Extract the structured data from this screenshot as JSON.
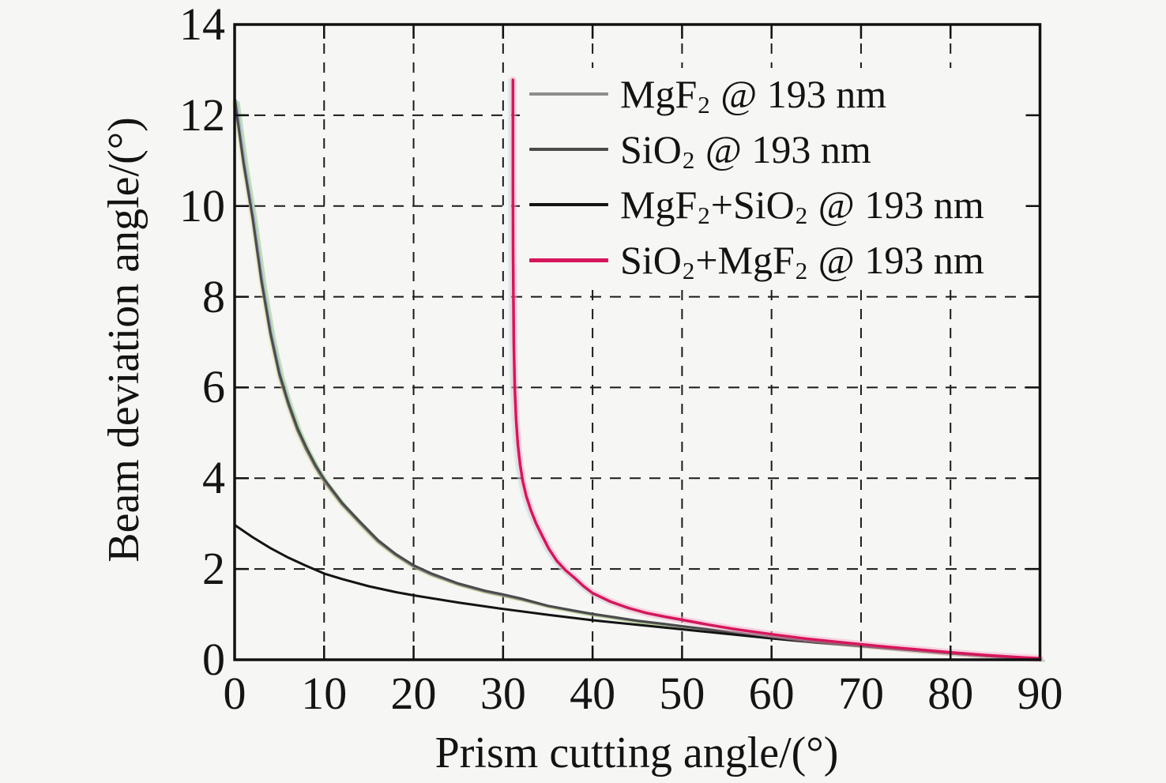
{
  "figure": {
    "background": "#f6f6f4",
    "axis_color": "#111111",
    "grid_color": "#1a1a1a",
    "text_color": "#151515"
  },
  "chart_data": {
    "type": "line",
    "title": "",
    "xlabel": "Prism cutting angle/(°)",
    "ylabel": "Beam deviation angle/(°)",
    "xlim": [
      0,
      90
    ],
    "ylim": [
      0,
      14
    ],
    "x_ticks": [
      0,
      10,
      20,
      30,
      40,
      50,
      60,
      70,
      80,
      90
    ],
    "y_ticks": [
      0,
      2,
      4,
      6,
      8,
      10,
      12,
      14
    ],
    "grid": "dashed black grid on both axes, box on, ticks inward on all four sides",
    "legend_position": "upper right inside axes, no border, opaque background",
    "series": [
      {
        "name": "MgF2 @ 193 nm",
        "label_segments": [
          [
            "MgF",
            false
          ],
          [
            "2",
            true
          ],
          [
            " @ 193 nm",
            false
          ]
        ],
        "color": "#8e8e8e",
        "line_width": 3,
        "halos": [
          {
            "color": "#5a68c0",
            "dx": 2,
            "dy": 0,
            "width": 3,
            "opacity": 0.5
          },
          {
            "color": "#7dbf70",
            "dx": 5,
            "dy": 2,
            "width": 3,
            "opacity": 0.45
          },
          {
            "color": "#d8d96a",
            "dx": -2,
            "dy": 1,
            "width": 3,
            "opacity": 0.3
          }
        ],
        "x": [
          0,
          1,
          2,
          3,
          4,
          5,
          6,
          7,
          8,
          9,
          10,
          12,
          14,
          16,
          18,
          20,
          22,
          25,
          28,
          30,
          32,
          35,
          38,
          40,
          42,
          45,
          48,
          50,
          55,
          60,
          65,
          70,
          75,
          80,
          85,
          90
        ],
        "y": [
          12.32,
          10.9,
          9.7,
          8.3,
          7.15,
          6.25,
          5.6,
          5.05,
          4.62,
          4.25,
          3.93,
          3.42,
          3.0,
          2.6,
          2.3,
          2.05,
          1.87,
          1.66,
          1.5,
          1.42,
          1.33,
          1.18,
          1.07,
          1.0,
          0.94,
          0.85,
          0.78,
          0.73,
          0.62,
          0.5,
          0.4,
          0.31,
          0.22,
          0.14,
          0.07,
          0.01
        ]
      },
      {
        "name": "SiO2 @ 193 nm",
        "label_segments": [
          [
            "SiO",
            false
          ],
          [
            "2",
            true
          ],
          [
            " @ 193 nm",
            false
          ]
        ],
        "color": "#4b4b4b",
        "line_width": 3,
        "halos": [],
        "x": [
          0,
          1,
          2,
          3,
          4,
          5,
          6,
          7,
          8,
          9,
          10,
          12,
          14,
          16,
          18,
          20,
          22,
          25,
          28,
          30,
          32,
          35,
          38,
          40,
          42,
          45,
          48,
          50,
          55,
          60,
          65,
          70,
          75,
          80,
          85,
          90
        ],
        "y": [
          12.38,
          10.96,
          9.76,
          8.36,
          7.21,
          6.31,
          5.66,
          5.11,
          4.68,
          4.3,
          3.98,
          3.46,
          3.04,
          2.64,
          2.33,
          2.08,
          1.9,
          1.68,
          1.52,
          1.44,
          1.35,
          1.19,
          1.08,
          1.01,
          0.95,
          0.86,
          0.79,
          0.74,
          0.62,
          0.5,
          0.4,
          0.31,
          0.22,
          0.14,
          0.07,
          0.01
        ]
      },
      {
        "name": "MgF2+SiO2 @ 193 nm",
        "label_segments": [
          [
            "MgF",
            false
          ],
          [
            "2",
            true
          ],
          [
            "+SiO",
            false
          ],
          [
            "2",
            true
          ],
          [
            " @ 193 nm",
            false
          ]
        ],
        "color": "#141414",
        "line_width": 3,
        "halos": [],
        "x": [
          0,
          2,
          4,
          6,
          8,
          10,
          12,
          15,
          18,
          20,
          25,
          30,
          35,
          40,
          45,
          50,
          55,
          60,
          65,
          70,
          75,
          80,
          85,
          90
        ],
        "y": [
          2.97,
          2.7,
          2.46,
          2.25,
          2.07,
          1.9,
          1.78,
          1.62,
          1.49,
          1.42,
          1.26,
          1.12,
          0.99,
          0.87,
          0.77,
          0.67,
          0.57,
          0.47,
          0.38,
          0.3,
          0.22,
          0.14,
          0.07,
          0.01
        ]
      },
      {
        "name": "SiO2+MgF2 @ 193 nm",
        "label_segments": [
          [
            "SiO",
            false
          ],
          [
            "2",
            true
          ],
          [
            "+MgF",
            false
          ],
          [
            "2",
            true
          ],
          [
            " @ 193 nm",
            false
          ]
        ],
        "color": "#d6165b",
        "line_width": 3.5,
        "halos": [
          {
            "color": "#f6aecb",
            "dx": 0,
            "dy": 0,
            "width": 9,
            "opacity": 0.5
          },
          {
            "color": "#bfe9e4",
            "dx": -5,
            "dy": 0,
            "width": 3,
            "opacity": 0.45
          }
        ],
        "x": [
          31.1,
          31.1,
          31.12,
          31.15,
          31.2,
          31.3,
          31.45,
          31.65,
          31.9,
          32.2,
          32.6,
          33.1,
          33.7,
          34.4,
          35.1,
          36,
          37,
          38,
          39,
          40,
          42,
          44,
          46,
          48,
          50,
          53,
          56,
          60,
          64,
          68,
          72,
          76,
          80,
          84,
          88,
          90
        ],
        "y": [
          12.78,
          10.5,
          9.0,
          8.0,
          7.0,
          6.0,
          5.3,
          4.75,
          4.3,
          3.93,
          3.6,
          3.3,
          3.0,
          2.72,
          2.45,
          2.18,
          1.97,
          1.8,
          1.62,
          1.47,
          1.28,
          1.14,
          1.03,
          0.95,
          0.88,
          0.77,
          0.67,
          0.56,
          0.46,
          0.38,
          0.3,
          0.23,
          0.16,
          0.1,
          0.05,
          0.03
        ]
      }
    ]
  }
}
